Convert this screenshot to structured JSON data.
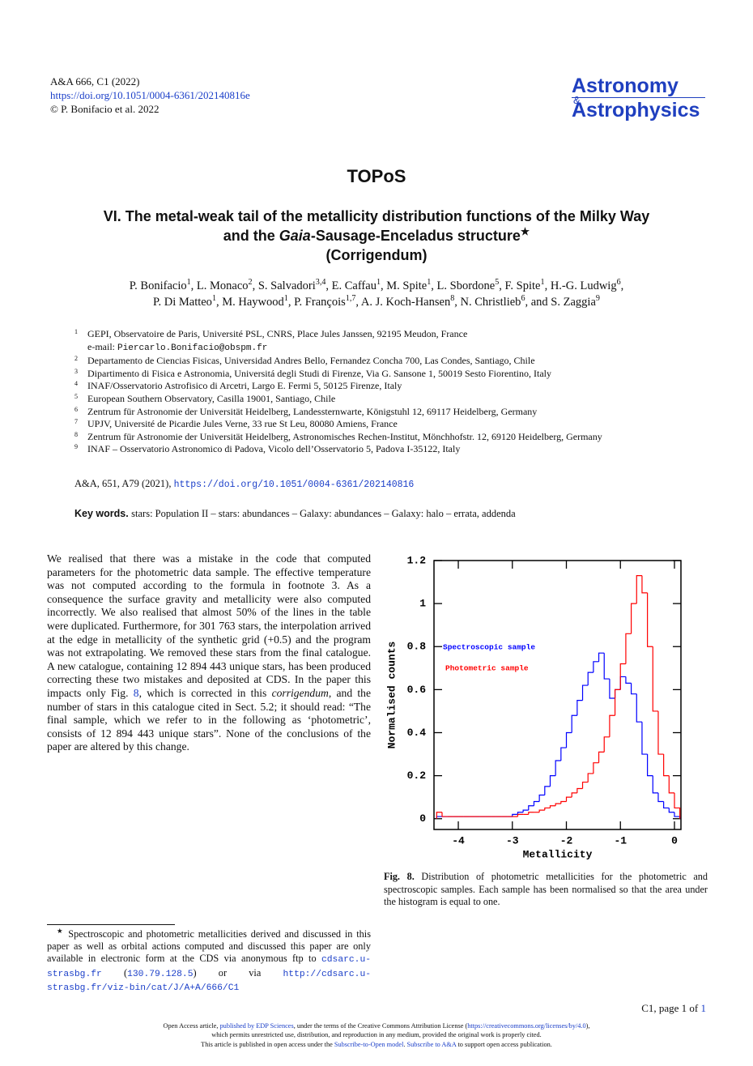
{
  "header": {
    "lines": [
      [
        {
          "text": "A&A 666, C1 (2022)",
          "style": "plain"
        }
      ],
      [
        {
          "text": "https://doi.org/10.1051/0004-6361/202140816e",
          "style": "link"
        }
      ],
      [
        {
          "text": "© P. Bonifacio et al. 2022",
          "style": "plain"
        }
      ]
    ],
    "logo": {
      "top": "Astronomy",
      "amp": "&",
      "bottom": "Astrophysics"
    }
  },
  "title": "TOPoS",
  "subtitle": [
    [
      {
        "text": "VI. The metal-weak tail of the metallicity distribution functions of the Milky Way",
        "style": "plain"
      }
    ],
    [
      {
        "text": "and the ",
        "style": "plain"
      },
      {
        "text": "Gaia",
        "style": "italic"
      },
      {
        "text": "-Sausage-Enceladus structure",
        "style": "plain"
      },
      {
        "text": "★",
        "style": "sup"
      }
    ],
    [
      {
        "text": "(Corrigendum)",
        "style": "plain"
      }
    ]
  ],
  "authors": [
    [
      {
        "text": "P. Bonifacio",
        "style": "plain"
      },
      {
        "text": "1",
        "style": "sup"
      },
      {
        "text": ", L. Monaco",
        "style": "plain"
      },
      {
        "text": "2",
        "style": "sup"
      },
      {
        "text": ", S. Salvadori",
        "style": "plain"
      },
      {
        "text": "3,4",
        "style": "sup"
      },
      {
        "text": ", E. Caffau",
        "style": "plain"
      },
      {
        "text": "1",
        "style": "sup"
      },
      {
        "text": ", M. Spite",
        "style": "plain"
      },
      {
        "text": "1",
        "style": "sup"
      },
      {
        "text": ", L. Sbordone",
        "style": "plain"
      },
      {
        "text": "5",
        "style": "sup"
      },
      {
        "text": ", F. Spite",
        "style": "plain"
      },
      {
        "text": "1",
        "style": "sup"
      },
      {
        "text": ", H.-G. Ludwig",
        "style": "plain"
      },
      {
        "text": "6",
        "style": "sup"
      },
      {
        "text": ",",
        "style": "plain"
      }
    ],
    [
      {
        "text": "P. Di Matteo",
        "style": "plain"
      },
      {
        "text": "1",
        "style": "sup"
      },
      {
        "text": ", M. Haywood",
        "style": "plain"
      },
      {
        "text": "1",
        "style": "sup"
      },
      {
        "text": ", P. François",
        "style": "plain"
      },
      {
        "text": "1,7",
        "style": "sup"
      },
      {
        "text": ", A. J. Koch-Hansen",
        "style": "plain"
      },
      {
        "text": "8",
        "style": "sup"
      },
      {
        "text": ", N. Christlieb",
        "style": "plain"
      },
      {
        "text": "6",
        "style": "sup"
      },
      {
        "text": ", and S. Zaggia",
        "style": "plain"
      },
      {
        "text": "9",
        "style": "sup"
      }
    ]
  ],
  "affiliations": [
    {
      "num": "1",
      "parts": [
        {
          "text": "GEPI, Observatoire de Paris, Université PSL, CNRS, Place Jules Janssen, 92195 Meudon, France",
          "style": "plain"
        },
        {
          "text": "e-mail: ",
          "style": "break"
        },
        {
          "text": "Piercarlo.Bonifacio@obspm.fr",
          "style": "mono"
        }
      ]
    },
    {
      "num": "2",
      "parts": [
        {
          "text": "Departamento de Ciencias Fisicas, Universidad Andres Bello, Fernandez Concha 700, Las Condes, Santiago, Chile",
          "style": "plain"
        }
      ]
    },
    {
      "num": "3",
      "parts": [
        {
          "text": "Dipartimento di Fisica e Astronomia, Universitá degli Studi di Firenze, Via G. Sansone 1, 50019 Sesto Fiorentino, Italy",
          "style": "plain"
        }
      ]
    },
    {
      "num": "4",
      "parts": [
        {
          "text": "INAF/Osservatorio Astrofisico di Arcetri, Largo E. Fermi 5, 50125 Firenze, Italy",
          "style": "plain"
        }
      ]
    },
    {
      "num": "5",
      "parts": [
        {
          "text": "European Southern Observatory, Casilla 19001, Santiago, Chile",
          "style": "plain"
        }
      ]
    },
    {
      "num": "6",
      "parts": [
        {
          "text": "Zentrum für Astronomie der Universität Heidelberg, Landessternwarte, Königstuhl 12, 69117 Heidelberg, Germany",
          "style": "plain"
        }
      ]
    },
    {
      "num": "7",
      "parts": [
        {
          "text": "UPJV, Université de Picardie Jules Verne, 33 rue St Leu, 80080 Amiens, France",
          "style": "plain"
        }
      ]
    },
    {
      "num": "8",
      "parts": [
        {
          "text": "Zentrum für Astronomie der Universität Heidelberg, Astronomisches Rechen-Institut, Mönchhofstr. 12, 69120 Heidelberg, Germany",
          "style": "plain"
        }
      ]
    },
    {
      "num": "9",
      "parts": [
        {
          "text": "INAF – Osservatorio Astronomico di Padova, Vicolo dell’Osservatorio 5, Padova I-35122, Italy",
          "style": "plain"
        }
      ]
    }
  ],
  "reference": [
    {
      "text": "A&A, 651, A79 (2021), ",
      "style": "plain"
    },
    {
      "text": "https://doi.org/10.1051/0004-6361/202140816",
      "style": "mono-link"
    }
  ],
  "keywords": [
    {
      "text": "Key words. ",
      "style": "kw"
    },
    {
      "text": "stars: Population II – stars: abundances – Galaxy: abundances – Galaxy: halo – errata, addenda",
      "style": "plain"
    }
  ],
  "body": [
    {
      "text": "We realised that there was a mistake in the code that computed parameters for the photometric data sample. The effective temperature was not computed according to the formula in footnote 3. As a consequence the surface gravity and metallicity were also computed incorrectly. We also realised that almost 50% of the lines in the table were duplicated. Furthermore, for 301 763 stars, the interpolation arrived at the edge in metallicity of the synthetic grid (+0.5) and the program was not extrapolating. We removed these stars from the final catalogue. A new catalogue, containing 12 894 443 unique stars, has been produced correcting these two mistakes and deposited at CDS. In the paper this impacts only Fig. ",
      "style": "plain"
    },
    {
      "text": "8",
      "style": "link"
    },
    {
      "text": ", which is corrected in this ",
      "style": "plain"
    },
    {
      "text": "corrigendum",
      "style": "italic"
    },
    {
      "text": ", and the number of stars in this catalogue cited in Sect. 5.2; it should read: “The final sample, which we refer to in the following as ‘photometric’, consists of 12 894 443 unique stars”. None of the conclusions of the paper are altered by this change.",
      "style": "plain"
    }
  ],
  "caption": [
    {
      "text": "Fig. 8.",
      "style": "bold"
    },
    {
      "text": " Distribution of photometric metallicities for the photometric and spectroscopic samples. Each sample has been normalised so that the area under the histogram is equal to one.",
      "style": "plain"
    }
  ],
  "footnote": [
    {
      "text": "★",
      "style": "sup"
    },
    {
      "text": " Spectroscopic and photometric metallicities derived and discussed in this paper as well as orbital actions computed and discussed this paper are only available in electronic form at the CDS via anonymous ftp to ",
      "style": "plain"
    },
    {
      "text": "cdsarc.u-strasbg.fr",
      "style": "mono-link"
    },
    {
      "text": " (",
      "style": "plain"
    },
    {
      "text": "130.79.128.5",
      "style": "mono-link"
    },
    {
      "text": ") or via ",
      "style": "plain"
    },
    {
      "text": "http://cdsarc.u-strasbg.fr/viz-bin/cat/J/A+A/666/C1",
      "style": "mono-link"
    }
  ],
  "page_number": [
    {
      "text": "C1, page 1 of ",
      "style": "plain"
    },
    {
      "text": "1",
      "style": "link"
    }
  ],
  "footer": [
    [
      {
        "text": "Open Access article, ",
        "style": "plain"
      },
      {
        "text": "published by EDP Sciences",
        "style": "link"
      },
      {
        "text": ", under the terms of the Creative Commons Attribution License (",
        "style": "plain"
      },
      {
        "text": "https://creativecommons.org/licenses/by/4.0",
        "style": "link"
      },
      {
        "text": "),",
        "style": "plain"
      }
    ],
    [
      {
        "text": "which permits unrestricted use, distribution, and reproduction in any medium, provided the original work is properly cited.",
        "style": "plain"
      }
    ],
    [
      {
        "text": "This article is published in open access under the ",
        "style": "plain"
      },
      {
        "text": "Subscribe-to-Open model",
        "style": "link"
      },
      {
        "text": ". ",
        "style": "plain"
      },
      {
        "text": "Subscribe to A&A",
        "style": "link"
      },
      {
        "text": " to support open access publication.",
        "style": "plain"
      }
    ]
  ],
  "chart_data": {
    "type": "histogram",
    "xlabel": "Metallicity",
    "ylabel": "Normalised counts",
    "xlim": [
      -4.45,
      0.12
    ],
    "ylim": [
      -0.05,
      1.2
    ],
    "xticks": [
      -4,
      -3,
      -2,
      -1,
      0
    ],
    "yticks": [
      0,
      0.2,
      0.4,
      0.6,
      0.8,
      1,
      1.2
    ],
    "bins": [
      -4.4,
      -4.3,
      -4.2,
      -4.1,
      -4.0,
      -3.9,
      -3.8,
      -3.7,
      -3.6,
      -3.5,
      -3.4,
      -3.3,
      -3.2,
      -3.1,
      -3.0,
      -2.9,
      -2.8,
      -2.7,
      -2.6,
      -2.5,
      -2.4,
      -2.3,
      -2.2,
      -2.1,
      -2.0,
      -1.9,
      -1.8,
      -1.7,
      -1.6,
      -1.5,
      -1.4,
      -1.3,
      -1.2,
      -1.1,
      -1.0,
      -0.9,
      -0.8,
      -0.7,
      -0.6,
      -0.5,
      -0.4,
      -0.3,
      -0.2,
      -0.1,
      0.0,
      0.1
    ],
    "series": [
      {
        "name": "Spectroscopic sample",
        "color": "#0000ff",
        "values": [
          0.01,
          0.01,
          0.01,
          0.01,
          0.01,
          0.01,
          0.01,
          0.01,
          0.01,
          0.01,
          0.01,
          0.01,
          0.01,
          0.01,
          0.02,
          0.03,
          0.04,
          0.06,
          0.08,
          0.11,
          0.15,
          0.2,
          0.27,
          0.33,
          0.4,
          0.48,
          0.55,
          0.62,
          0.68,
          0.73,
          0.77,
          0.65,
          0.56,
          0.6,
          0.66,
          0.63,
          0.58,
          0.45,
          0.3,
          0.2,
          0.12,
          0.08,
          0.05,
          0.03,
          0.01
        ]
      },
      {
        "name": "Photometric sample",
        "color": "#ff0000",
        "values": [
          0.03,
          0.01,
          0.01,
          0.01,
          0.01,
          0.01,
          0.01,
          0.01,
          0.01,
          0.01,
          0.01,
          0.01,
          0.01,
          0.01,
          0.01,
          0.02,
          0.02,
          0.03,
          0.03,
          0.04,
          0.05,
          0.06,
          0.07,
          0.08,
          0.1,
          0.12,
          0.14,
          0.17,
          0.21,
          0.26,
          0.31,
          0.38,
          0.48,
          0.6,
          0.72,
          0.86,
          1.0,
          1.13,
          1.05,
          0.8,
          0.5,
          0.3,
          0.2,
          0.12,
          0.05
        ]
      }
    ]
  }
}
